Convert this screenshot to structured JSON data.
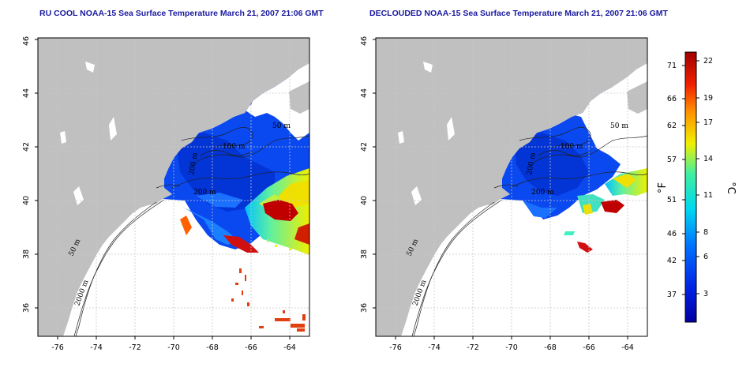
{
  "panels": [
    {
      "title": "RU COOL NOAA-15 Sea Surface Temperature March 21, 2007 21:06 GMT",
      "isobath_labels": [
        "50 m",
        "2000 m",
        "200 m",
        "100 m",
        "50 m",
        "200 m"
      ]
    },
    {
      "title": "DECLOUDED NOAA-15 Sea Surface Temperature March 21, 2007 21:06 GMT",
      "isobath_labels": [
        "50 m",
        "2000 m",
        "200 m",
        "100 m",
        "50 m",
        "200 m"
      ]
    }
  ],
  "axes": {
    "lon_ticks": [
      "-76",
      "-74",
      "-72",
      "-70",
      "-68",
      "-66",
      "-64"
    ],
    "lat_ticks": [
      "36",
      "38",
      "40",
      "42",
      "44",
      "46"
    ],
    "lon_range": [
      -77,
      -63
    ],
    "lat_range": [
      35,
      46
    ]
  },
  "colorbar": {
    "fahrenheit_unit": "°F",
    "celsius_unit": "°C",
    "fahrenheit_ticks": [
      "71",
      "66",
      "62",
      "57",
      "51",
      "46",
      "42",
      "37"
    ],
    "celsius_ticks": [
      "22",
      "19",
      "17",
      "14",
      "11",
      "8",
      "6",
      "3"
    ],
    "colors": {
      "cold": "#0000a0",
      "cool": "#0050ff",
      "mid": "#00e0e0",
      "warm": "#f0f000",
      "hot": "#a00000"
    }
  },
  "colors": {
    "land": "#c0c0c0",
    "ocean": "#ffffff",
    "grid": "#c8c8c8",
    "title": "#1a1aa0"
  }
}
